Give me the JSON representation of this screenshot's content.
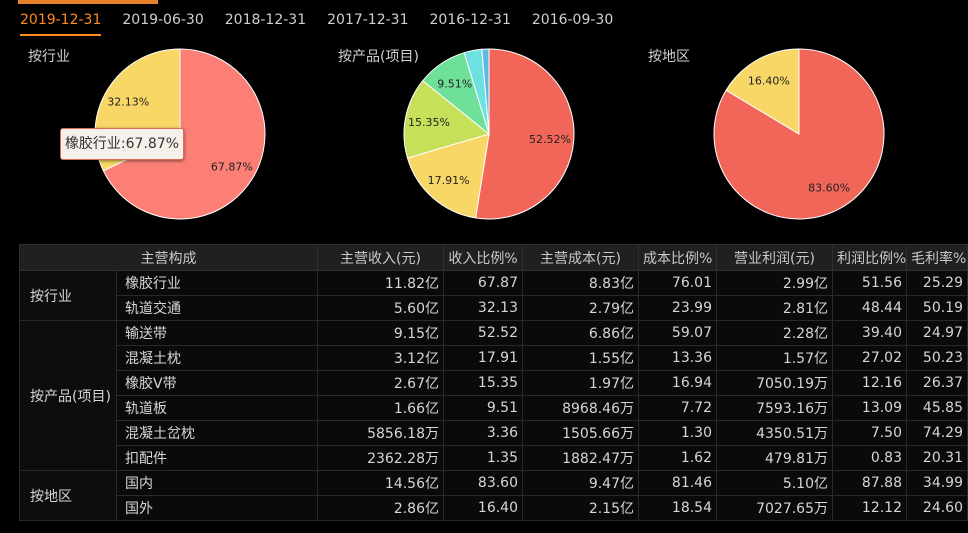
{
  "tabs": [
    "2019-12-31",
    "2019-06-30",
    "2018-12-31",
    "2017-12-31",
    "2016-12-31",
    "2016-09-30"
  ],
  "active_tab": 0,
  "tooltip": "橡胶行业:67.87%",
  "chart_data": [
    {
      "type": "pie",
      "title": "按行业",
      "categories": [
        "橡胶行业",
        "轨道交通"
      ],
      "values": [
        67.87,
        32.13
      ],
      "colors": [
        "#fb7f74",
        "#f8d766"
      ],
      "labels": [
        "67.87%",
        "32.13%"
      ]
    },
    {
      "type": "pie",
      "title": "按产品(项目)",
      "categories": [
        "输送带",
        "混凝土枕",
        "橡胶V带",
        "轨道板",
        "混凝土岔枕",
        "扣配件"
      ],
      "values": [
        52.52,
        17.91,
        15.35,
        9.51,
        3.36,
        1.35
      ],
      "colors": [
        "#f2665a",
        "#f8d766",
        "#c7e05a",
        "#6fe09a",
        "#6de0e0",
        "#5fb8e8"
      ],
      "labels": [
        "52.52%",
        "17.91%",
        "15.35%",
        "9.51%",
        "",
        ""
      ]
    },
    {
      "type": "pie",
      "title": "按地区",
      "categories": [
        "国内",
        "国外"
      ],
      "values": [
        83.6,
        16.4
      ],
      "colors": [
        "#f2665a",
        "#f8d766"
      ],
      "labels": [
        "83.60%",
        "16.40%"
      ]
    }
  ],
  "table": {
    "headers": [
      "主营构成",
      "主营收入(元)",
      "收入比例%",
      "主营成本(元)",
      "成本比例%",
      "营业利润(元)",
      "利润比例%",
      "毛利率%"
    ],
    "groups": [
      {
        "name": "按行业",
        "rows": [
          [
            "橡胶行业",
            "11.82亿",
            "67.87",
            "8.83亿",
            "76.01",
            "2.99亿",
            "51.56",
            "25.29"
          ],
          [
            "轨道交通",
            "5.60亿",
            "32.13",
            "2.79亿",
            "23.99",
            "2.81亿",
            "48.44",
            "50.19"
          ]
        ]
      },
      {
        "name": "按产品(项目)",
        "rows": [
          [
            "输送带",
            "9.15亿",
            "52.52",
            "6.86亿",
            "59.07",
            "2.28亿",
            "39.40",
            "24.97"
          ],
          [
            "混凝土枕",
            "3.12亿",
            "17.91",
            "1.55亿",
            "13.36",
            "1.57亿",
            "27.02",
            "50.23"
          ],
          [
            "橡胶V带",
            "2.67亿",
            "15.35",
            "1.97亿",
            "16.94",
            "7050.19万",
            "12.16",
            "26.37"
          ],
          [
            "轨道板",
            "1.66亿",
            "9.51",
            "8968.46万",
            "7.72",
            "7593.16万",
            "13.09",
            "45.85"
          ],
          [
            "混凝土岔枕",
            "5856.18万",
            "3.36",
            "1505.66万",
            "1.30",
            "4350.51万",
            "7.50",
            "74.29"
          ],
          [
            "扣配件",
            "2362.28万",
            "1.35",
            "1882.47万",
            "1.62",
            "479.81万",
            "0.83",
            "20.31"
          ]
        ]
      },
      {
        "name": "按地区",
        "rows": [
          [
            "国内",
            "14.56亿",
            "83.60",
            "9.47亿",
            "81.46",
            "5.10亿",
            "87.88",
            "34.99"
          ],
          [
            "国外",
            "2.86亿",
            "16.40",
            "2.15亿",
            "18.54",
            "7027.65万",
            "12.12",
            "24.60"
          ]
        ]
      }
    ]
  }
}
